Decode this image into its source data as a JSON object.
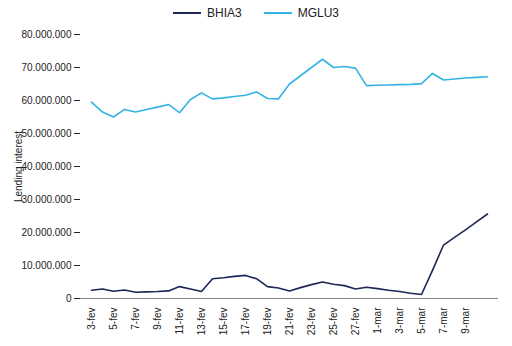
{
  "chart_data": {
    "type": "line",
    "y_label": "Lending interest",
    "categories": [
      "3-fev",
      null,
      "5-fev",
      null,
      "7-fev",
      null,
      "9-fev",
      null,
      "11-fev",
      null,
      "13-fev",
      null,
      "15-fev",
      null,
      "17-fev",
      null,
      "19-fev",
      null,
      "21-fev",
      null,
      "23-fev",
      null,
      "25-fev",
      null,
      "27-fev",
      null,
      "1-mar",
      null,
      "3-mar",
      null,
      "5-mar",
      null,
      "7-mar",
      null,
      "9-mar",
      null,
      null
    ],
    "series": [
      {
        "name": "BHIA3",
        "color": "#1c2757",
        "values": [
          2500000,
          2900000,
          2200000,
          2600000,
          1900000,
          2000000,
          2100000,
          2300000,
          3600000,
          2900000,
          2100000,
          6000000,
          6300000,
          6700000,
          7000000,
          6000000,
          3600000,
          3200000,
          2300000,
          3300000,
          4200000,
          5000000,
          4300000,
          3900000,
          2900000,
          3400000,
          3000000,
          2500000,
          2100000,
          1600000,
          1200000,
          8500000,
          16200000,
          18500000,
          20800000,
          23200000,
          25600000
        ]
      },
      {
        "name": "MGLU3",
        "color": "#34b3e4",
        "values": [
          59500000,
          56500000,
          55000000,
          57300000,
          56500000,
          57300000,
          58000000,
          58800000,
          56300000,
          60300000,
          62300000,
          60500000,
          60800000,
          61200000,
          61600000,
          62600000,
          60600000,
          60500000,
          65000000,
          67500000,
          70000000,
          72500000,
          70000000,
          70300000,
          69800000,
          64500000,
          64600000,
          64700000,
          64800000,
          64900000,
          65100000,
          68200000,
          66200000,
          66500000,
          66800000,
          67000000,
          67200000
        ]
      }
    ],
    "ylim": [
      0,
      80000000
    ],
    "yticks": [
      0,
      {
        "value": 10000000,
        "label": "10.000.000"
      },
      {
        "value": 20000000,
        "label": "20.000.000"
      },
      {
        "value": 30000000,
        "label": "30.000.000"
      },
      {
        "value": 40000000,
        "label": "40.000.000"
      },
      {
        "value": 50000000,
        "label": "50.000.000"
      },
      {
        "value": 60000000,
        "label": "60.000.000"
      },
      {
        "value": 70000000,
        "label": "70.000.000"
      },
      {
        "value": 80000000,
        "label": "80.000.000"
      }
    ],
    "legend": "top",
    "grid": false
  }
}
